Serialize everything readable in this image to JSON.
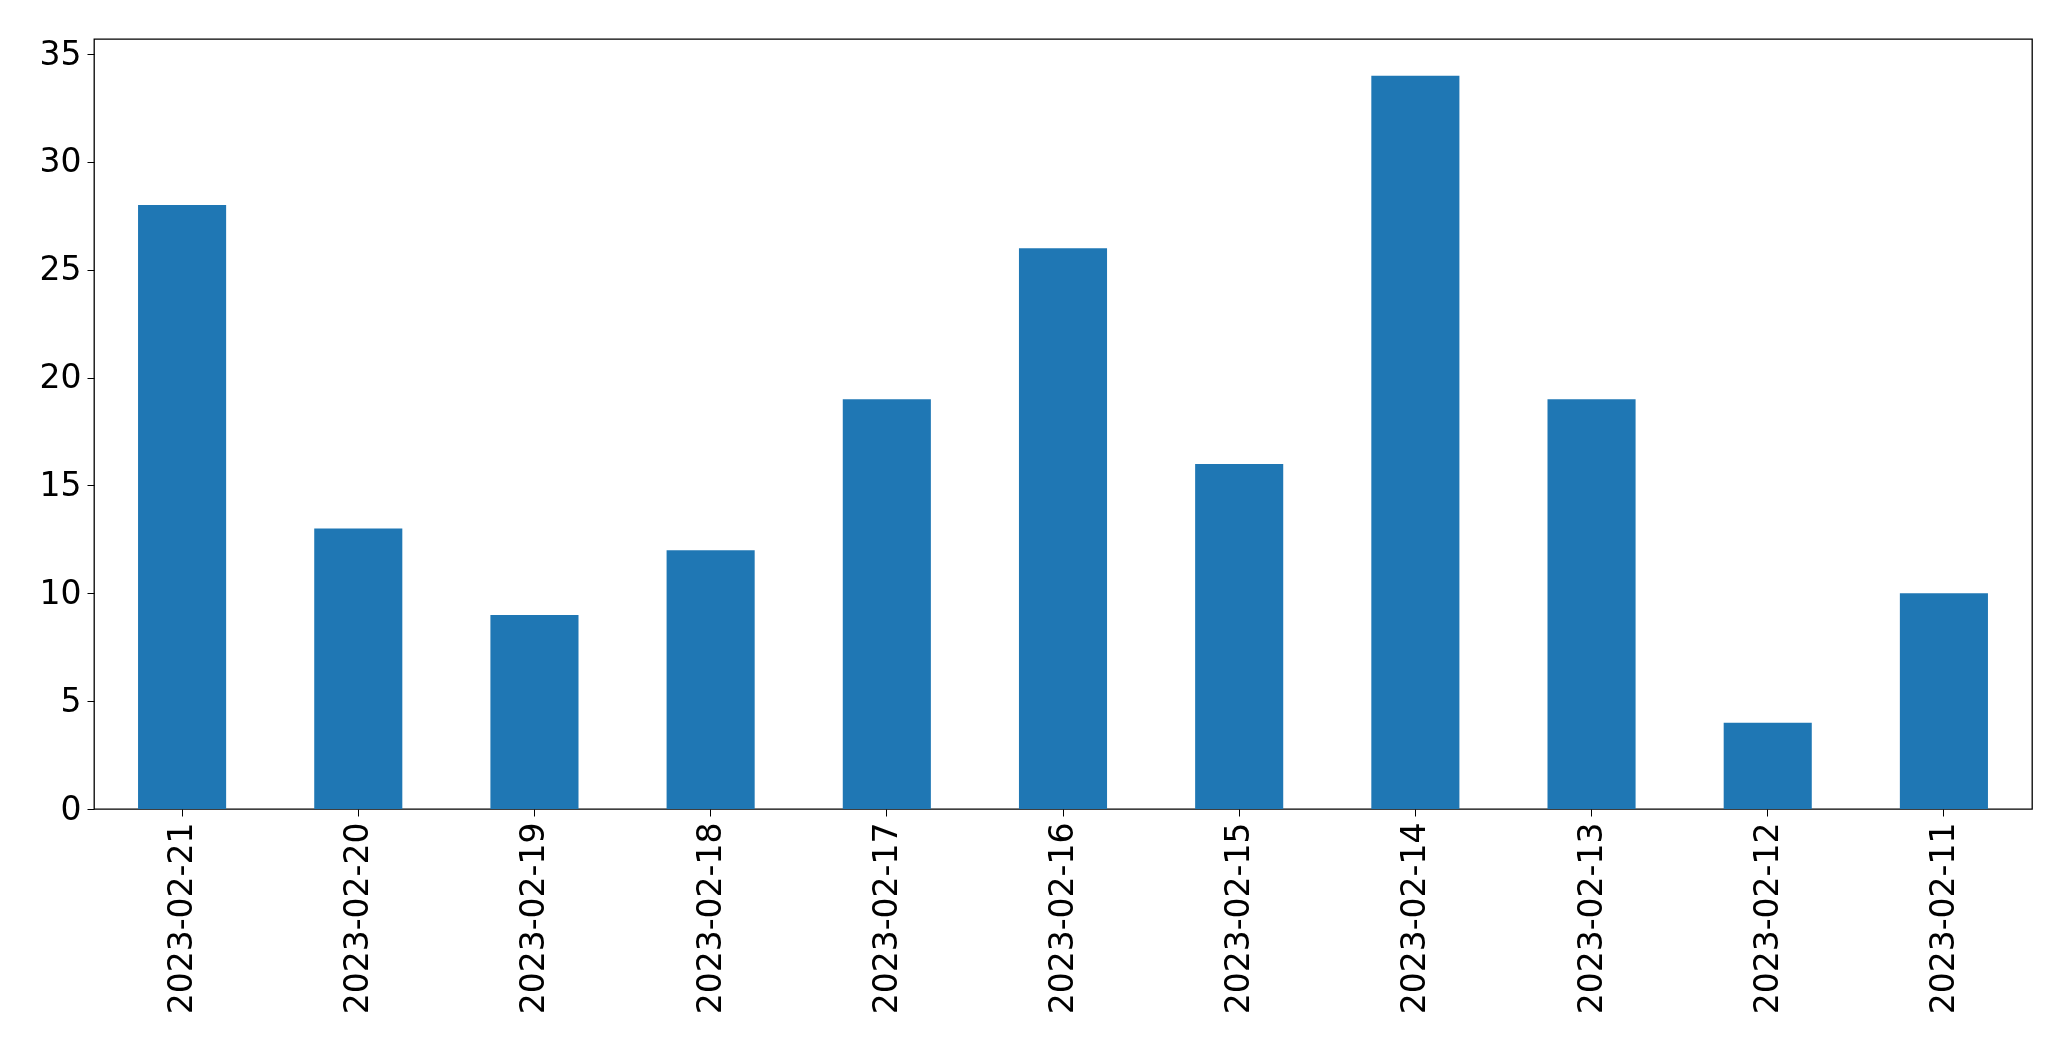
{
  "chart_data": {
    "type": "bar",
    "categories": [
      "2023-02-21",
      "2023-02-20",
      "2023-02-19",
      "2023-02-18",
      "2023-02-17",
      "2023-02-16",
      "2023-02-15",
      "2023-02-14",
      "2023-02-13",
      "2023-02-12",
      "2023-02-11"
    ],
    "values": [
      28,
      13,
      9,
      12,
      19,
      26,
      16,
      34,
      19,
      4,
      10
    ],
    "color": "#1f77b4",
    "ylim": [
      0,
      35.7
    ],
    "yticks": [
      0,
      5,
      10,
      15,
      20,
      25,
      30,
      35
    ]
  }
}
